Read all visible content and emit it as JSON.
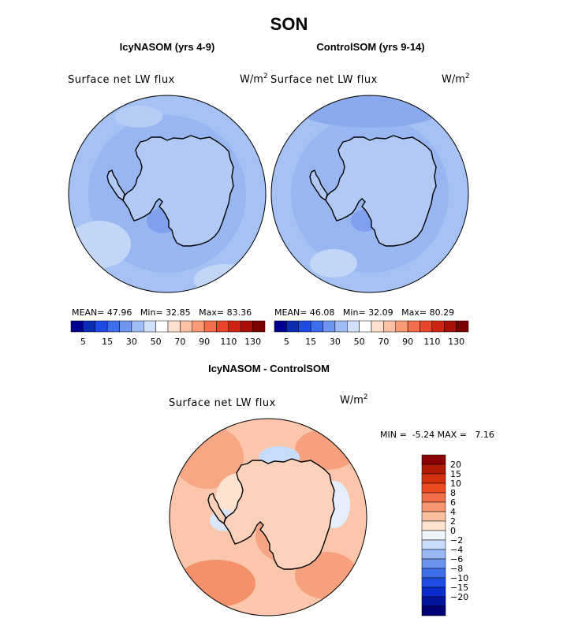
{
  "figure": {
    "title": "SON"
  },
  "panels": [
    {
      "title": "IcyNASOM (yrs 4-9)",
      "variable": "Surface net LW flux",
      "units_base": "W/m",
      "units_exp": "2",
      "stats": {
        "mean_label": "MEAN=",
        "mean": "47.96",
        "min_label": "Min=",
        "min": "32.85",
        "max_label": "Max=",
        "max": "83.36"
      },
      "colorbar_ticks": [
        "5",
        "15",
        "30",
        "50",
        "70",
        "90",
        "110",
        "130"
      ]
    },
    {
      "title": "ControlSOM (yrs 9-14)",
      "variable": "Surface net LW flux",
      "units_base": "W/m",
      "units_exp": "2",
      "stats": {
        "mean_label": "MEAN=",
        "mean": "46.08",
        "min_label": "Min=",
        "min": "32.09",
        "max_label": "Max=",
        "max": "80.29"
      },
      "colorbar_ticks": [
        "5",
        "15",
        "30",
        "50",
        "70",
        "90",
        "110",
        "130"
      ]
    }
  ],
  "difference": {
    "title": "IcyNASOM - ControlSOM",
    "variable": "Surface net LW flux",
    "units_base": "W/m",
    "units_exp": "2",
    "min_label": "MIN =",
    "min": "-5.24",
    "max_label": "MAX =",
    "max": "7.16",
    "colorbar_ticks": [
      "20",
      "15",
      "10",
      "8",
      "6",
      "4",
      "2",
      "0",
      "−2",
      "−4",
      "−6",
      "−8",
      "−10",
      "−15",
      "−20"
    ]
  },
  "colors": {
    "abs_palette": [
      "#000090",
      "#0a2db4",
      "#1e4be6",
      "#3c6ef0",
      "#6e95f0",
      "#a0bcf5",
      "#d2e1fa",
      "#ffffff",
      "#fde0cf",
      "#fcc1a3",
      "#fa9a74",
      "#f46e4a",
      "#e84428",
      "#cf2410",
      "#a81008",
      "#7a0000"
    ],
    "diff_palette": [
      "#8b0000",
      "#b01a04",
      "#d2300e",
      "#ee4a22",
      "#f46e48",
      "#f89672",
      "#fbbf9f",
      "#fde2d0",
      "#eef6fb",
      "#c7dbfa",
      "#97b8f5",
      "#6a94ef",
      "#3f6eea",
      "#1f4ce2",
      "#0c2dcc",
      "#00149e",
      "#000078"
    ],
    "ocean_abs": "#a6c2f4",
    "ocean_diff": "#fbc6ab"
  },
  "icons": {
    "map": "polar-stereographic-map-icon"
  }
}
